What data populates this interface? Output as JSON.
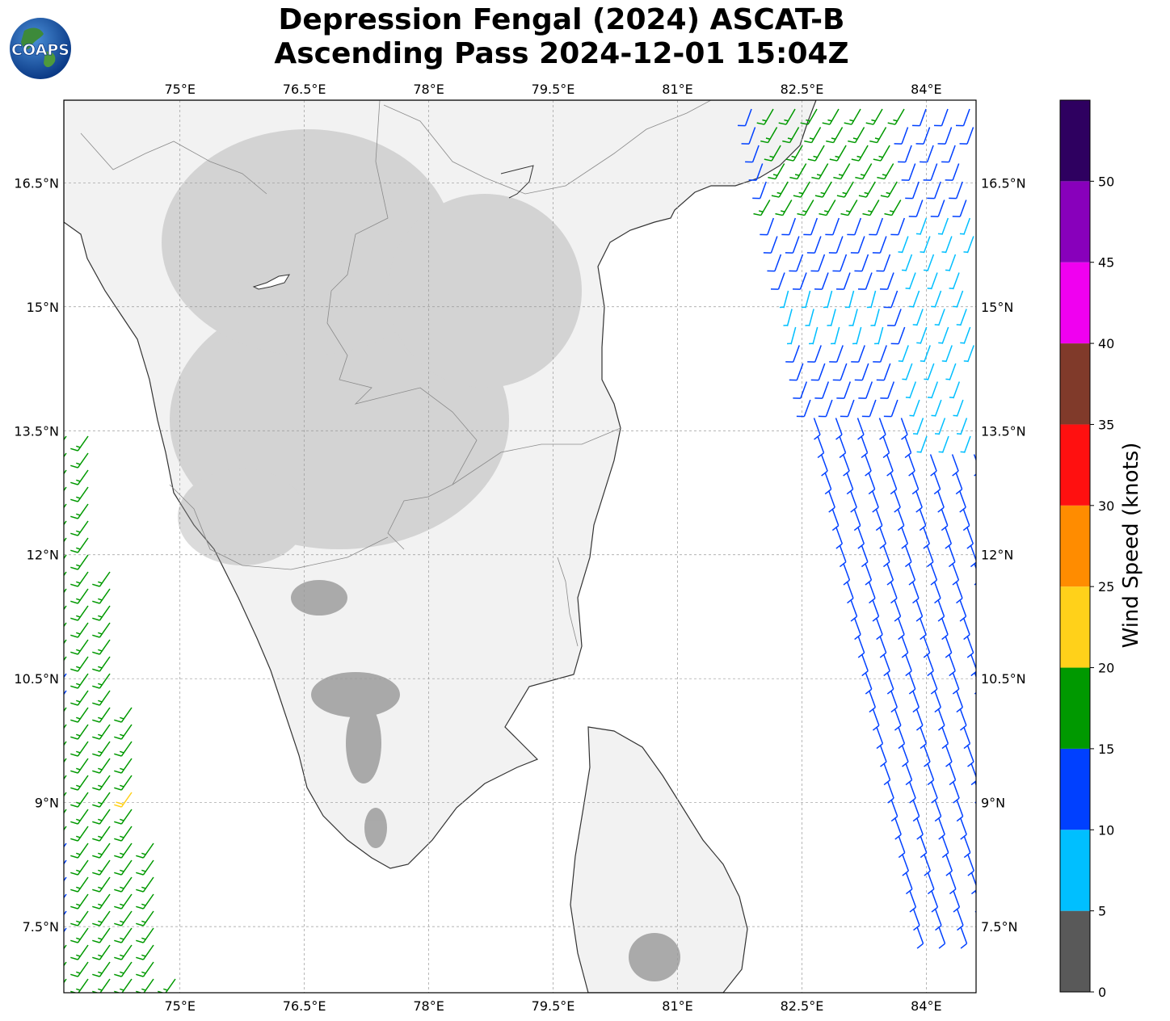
{
  "title": {
    "line1": "Depression Fengal (2024) ASCAT-B",
    "line2": "Ascending Pass 2024-12-01 15:04Z"
  },
  "logo": {
    "text": "COAPS",
    "icon": "globe-logo-icon"
  },
  "map": {
    "lon_range": [
      73.6,
      84.6
    ],
    "lat_range": [
      6.7,
      17.5
    ],
    "lon_ticks": [
      {
        "value": 75.0,
        "label": "75°E"
      },
      {
        "value": 76.5,
        "label": "76.5°E"
      },
      {
        "value": 78.0,
        "label": "78°E"
      },
      {
        "value": 79.5,
        "label": "79.5°E"
      },
      {
        "value": 81.0,
        "label": "81°E"
      },
      {
        "value": 82.5,
        "label": "82.5°E"
      },
      {
        "value": 84.0,
        "label": "84°E"
      }
    ],
    "lat_ticks": [
      {
        "value": 16.5,
        "label": "16.5°N"
      },
      {
        "value": 15.0,
        "label": "15°N"
      },
      {
        "value": 13.5,
        "label": "13.5°N"
      },
      {
        "value": 12.0,
        "label": "12°N"
      },
      {
        "value": 10.5,
        "label": "10.5°N"
      },
      {
        "value": 9.0,
        "label": "9°N"
      },
      {
        "value": 7.5,
        "label": "7.5°N"
      }
    ],
    "grid": true,
    "land_color": "#f2f2f2",
    "coast_color": "#333333"
  },
  "colorbar": {
    "label": "Wind Speed (knots)",
    "min": 0,
    "max": 55,
    "bins": [
      {
        "from": 0,
        "to": 5,
        "color": "#595959"
      },
      {
        "from": 5,
        "to": 10,
        "color": "#00bfff"
      },
      {
        "from": 10,
        "to": 15,
        "color": "#0040ff"
      },
      {
        "from": 15,
        "to": 20,
        "color": "#009900"
      },
      {
        "from": 20,
        "to": 25,
        "color": "#ffd11a"
      },
      {
        "from": 25,
        "to": 30,
        "color": "#ff8c00"
      },
      {
        "from": 30,
        "to": 35,
        "color": "#ff1010"
      },
      {
        "from": 35,
        "to": 40,
        "color": "#803a2a"
      },
      {
        "from": 40,
        "to": 45,
        "color": "#f000f0"
      },
      {
        "from": 45,
        "to": 50,
        "color": "#8800bb"
      },
      {
        "from": 50,
        "to": 55,
        "color": "#2e0060"
      }
    ],
    "ticks": [
      0,
      5,
      10,
      15,
      20,
      25,
      30,
      35,
      40,
      45,
      50
    ]
  }
}
